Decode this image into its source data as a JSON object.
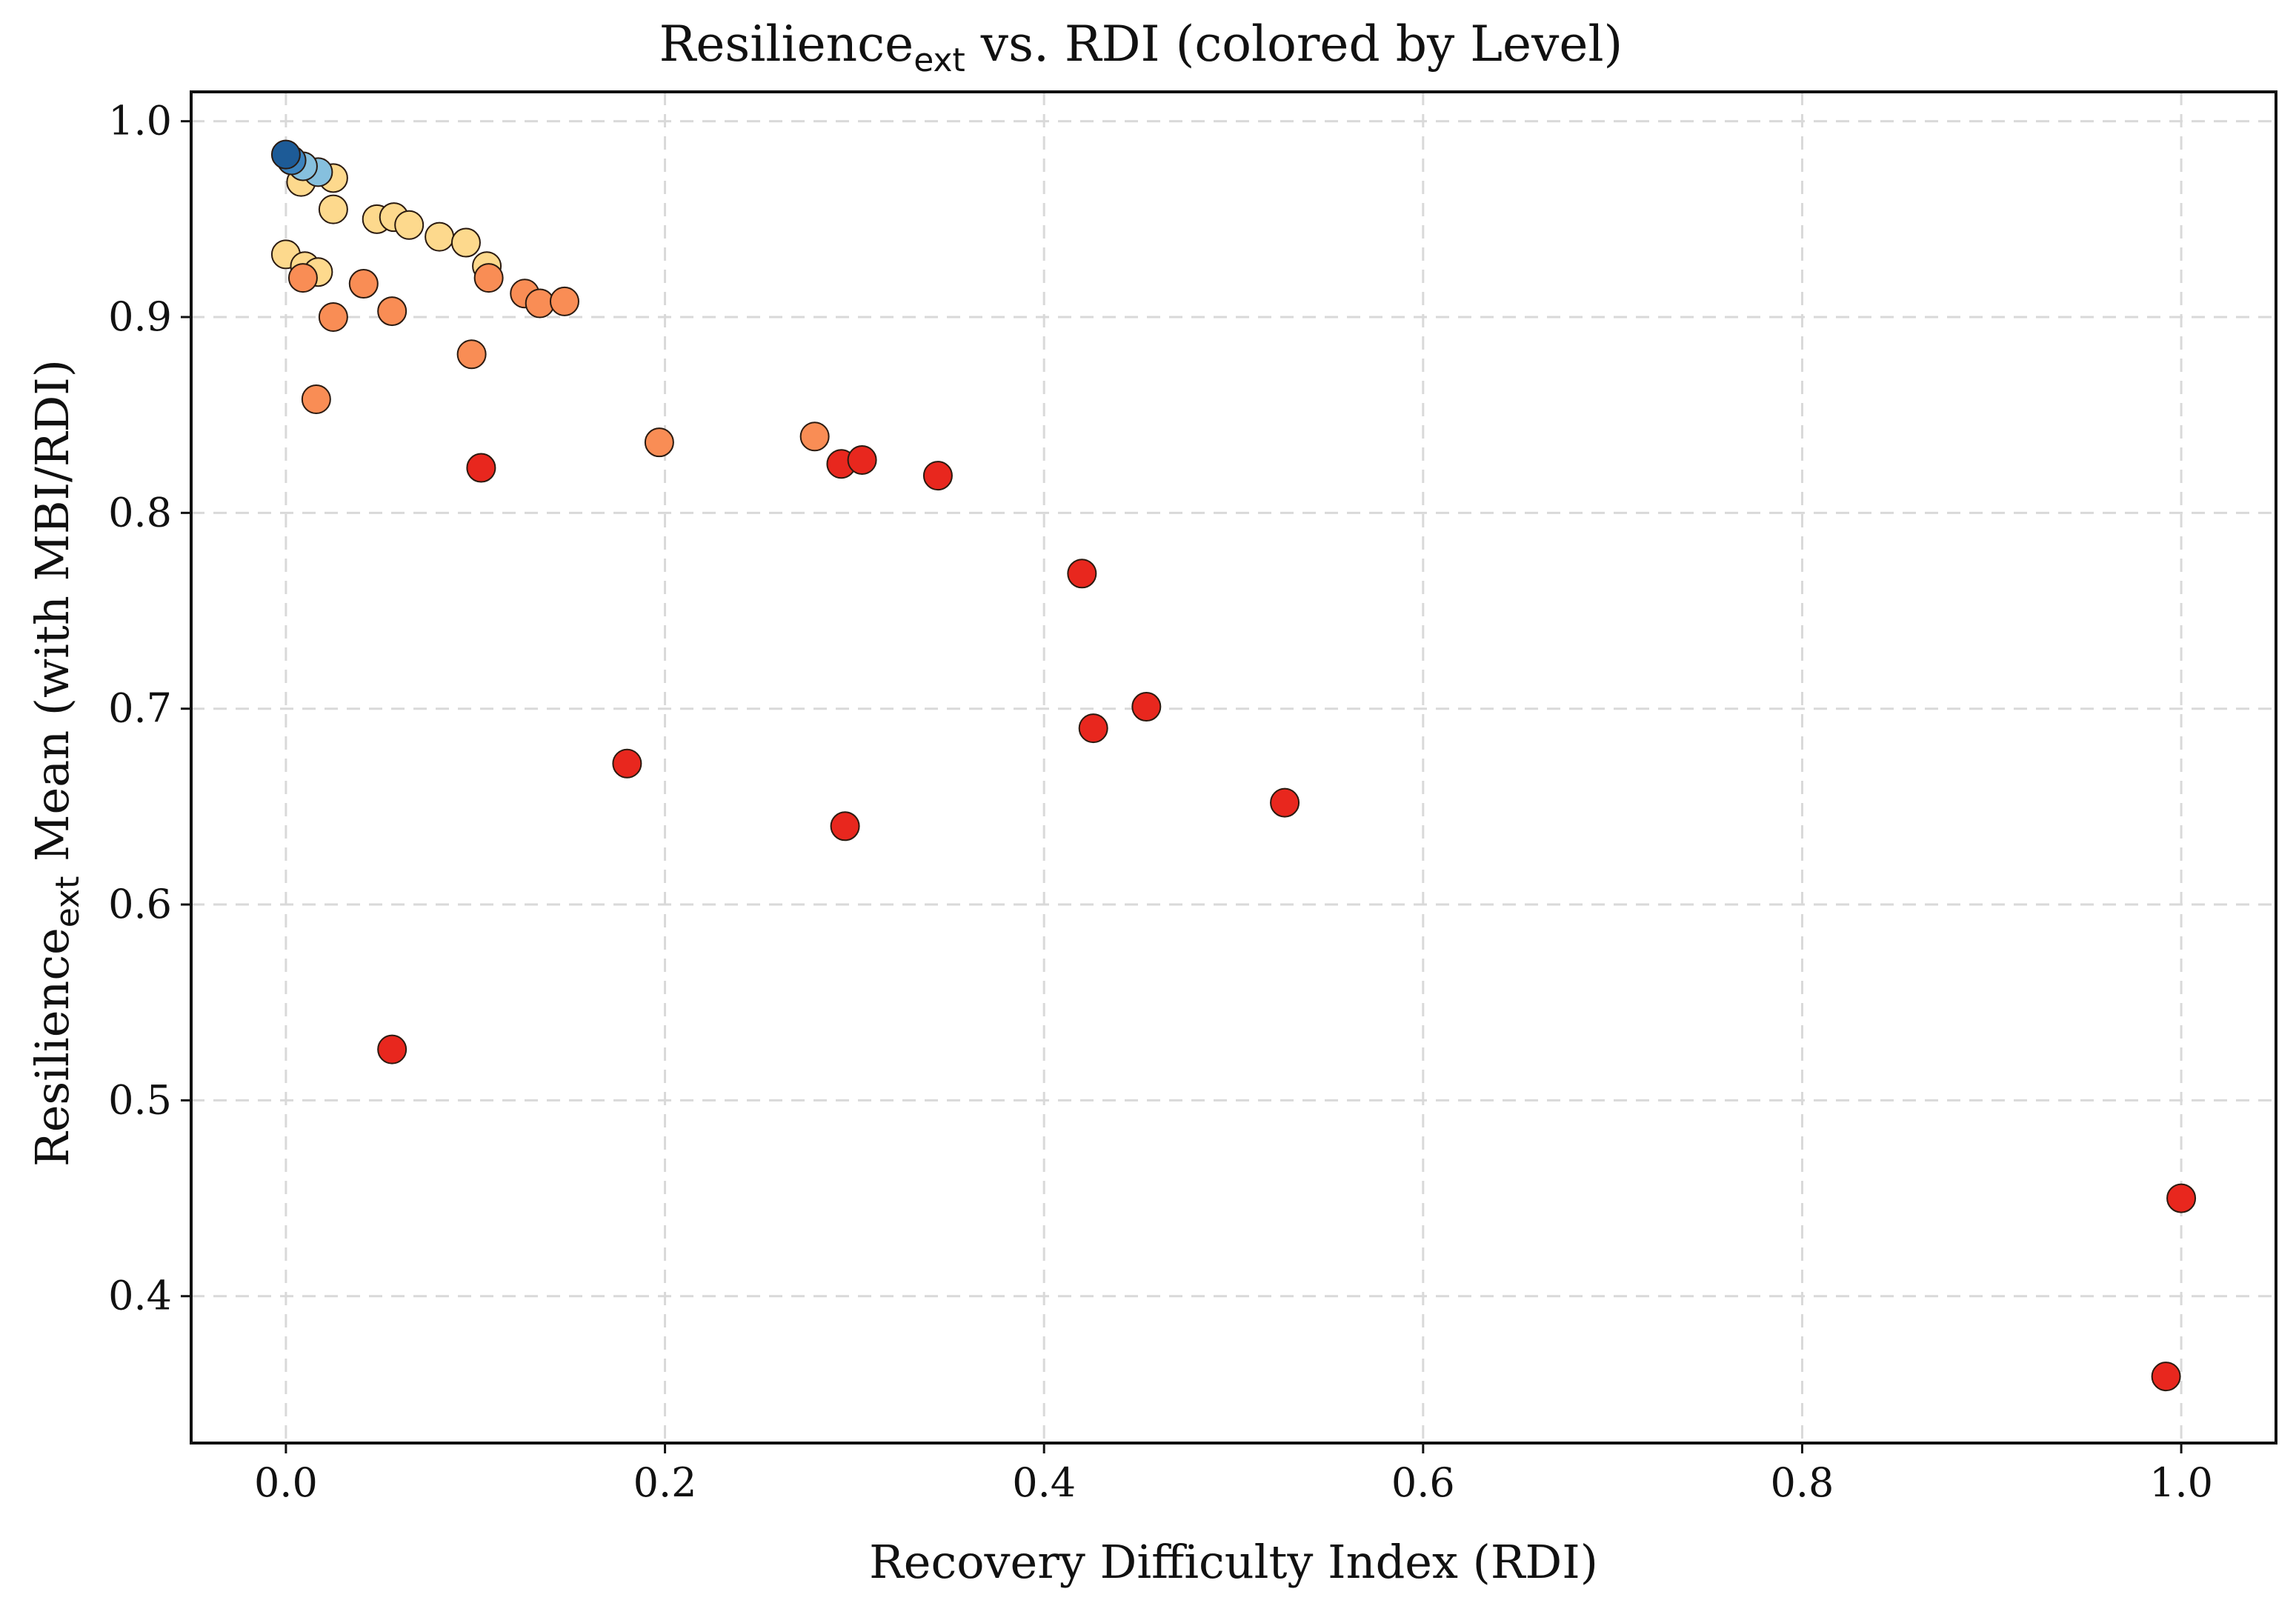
{
  "chart_data": {
    "type": "scatter",
    "title": {
      "main": "Resilience",
      "sub": "ext",
      "rest": " vs. RDI (colored by Level)"
    },
    "xlabel": "Recovery Difficulty Index (RDI)",
    "ylabel": {
      "main": "Resilience",
      "sub": "ext",
      "rest": " Mean (with MBI/RDI)"
    },
    "xlim": [
      -0.05,
      1.05
    ],
    "ylim": [
      0.325,
      1.015
    ],
    "xticks": [
      0.0,
      0.2,
      0.4,
      0.6,
      0.8,
      1.0
    ],
    "xtick_labels": [
      "0.0",
      "0.2",
      "0.4",
      "0.6",
      "0.8",
      "1.0"
    ],
    "yticks": [
      0.4,
      0.5,
      0.6,
      0.7,
      0.8,
      0.9,
      1.0
    ],
    "ytick_labels": [
      "0.4",
      "0.5",
      "0.6",
      "0.7",
      "0.8",
      "0.9",
      "1.0"
    ],
    "grid": true,
    "colors": {
      "red": "#e8271e",
      "orange": "#f98d55",
      "yellow": "#fdd98d",
      "lightblue": "#86c0de",
      "blue": "#3b83be",
      "darkblue": "#1d5b97",
      "grid": "#d9d9d9",
      "edge": "#2a1a10"
    },
    "points": [
      {
        "x": 0.025,
        "y": 0.971,
        "color": "yellow"
      },
      {
        "x": 0.008,
        "y": 0.969,
        "color": "yellow"
      },
      {
        "x": 0.025,
        "y": 0.955,
        "color": "yellow"
      },
      {
        "x": 0.048,
        "y": 0.95,
        "color": "yellow"
      },
      {
        "x": 0.057,
        "y": 0.951,
        "color": "yellow"
      },
      {
        "x": 0.065,
        "y": 0.947,
        "color": "yellow"
      },
      {
        "x": 0.081,
        "y": 0.941,
        "color": "yellow"
      },
      {
        "x": 0.095,
        "y": 0.938,
        "color": "yellow"
      },
      {
        "x": 0.106,
        "y": 0.926,
        "color": "yellow"
      },
      {
        "x": 0.0,
        "y": 0.932,
        "color": "yellow"
      },
      {
        "x": 0.01,
        "y": 0.926,
        "color": "yellow"
      },
      {
        "x": 0.017,
        "y": 0.923,
        "color": "yellow"
      },
      {
        "x": 0.009,
        "y": 0.92,
        "color": "orange"
      },
      {
        "x": 0.041,
        "y": 0.917,
        "color": "orange"
      },
      {
        "x": 0.107,
        "y": 0.92,
        "color": "orange"
      },
      {
        "x": 0.126,
        "y": 0.912,
        "color": "orange"
      },
      {
        "x": 0.134,
        "y": 0.907,
        "color": "orange"
      },
      {
        "x": 0.147,
        "y": 0.908,
        "color": "orange"
      },
      {
        "x": 0.056,
        "y": 0.903,
        "color": "orange"
      },
      {
        "x": 0.025,
        "y": 0.9,
        "color": "orange"
      },
      {
        "x": 0.098,
        "y": 0.881,
        "color": "orange"
      },
      {
        "x": 0.016,
        "y": 0.858,
        "color": "orange"
      },
      {
        "x": 0.197,
        "y": 0.836,
        "color": "orange"
      },
      {
        "x": 0.279,
        "y": 0.839,
        "color": "orange"
      },
      {
        "x": 0.103,
        "y": 0.823,
        "color": "red"
      },
      {
        "x": 0.293,
        "y": 0.825,
        "color": "red"
      },
      {
        "x": 0.304,
        "y": 0.827,
        "color": "red"
      },
      {
        "x": 0.344,
        "y": 0.819,
        "color": "red"
      },
      {
        "x": 0.42,
        "y": 0.769,
        "color": "red"
      },
      {
        "x": 0.454,
        "y": 0.701,
        "color": "red"
      },
      {
        "x": 0.426,
        "y": 0.69,
        "color": "red"
      },
      {
        "x": 0.18,
        "y": 0.672,
        "color": "red"
      },
      {
        "x": 0.527,
        "y": 0.652,
        "color": "red"
      },
      {
        "x": 0.295,
        "y": 0.64,
        "color": "red"
      },
      {
        "x": 0.056,
        "y": 0.526,
        "color": "red"
      },
      {
        "x": 1.0,
        "y": 0.45,
        "color": "red"
      },
      {
        "x": 0.992,
        "y": 0.359,
        "color": "red"
      },
      {
        "x": 0.017,
        "y": 0.974,
        "color": "lightblue"
      },
      {
        "x": 0.009,
        "y": 0.977,
        "color": "lightblue"
      },
      {
        "x": 0.003,
        "y": 0.98,
        "color": "blue"
      },
      {
        "x": 0.0,
        "y": 0.983,
        "color": "darkblue"
      }
    ]
  }
}
